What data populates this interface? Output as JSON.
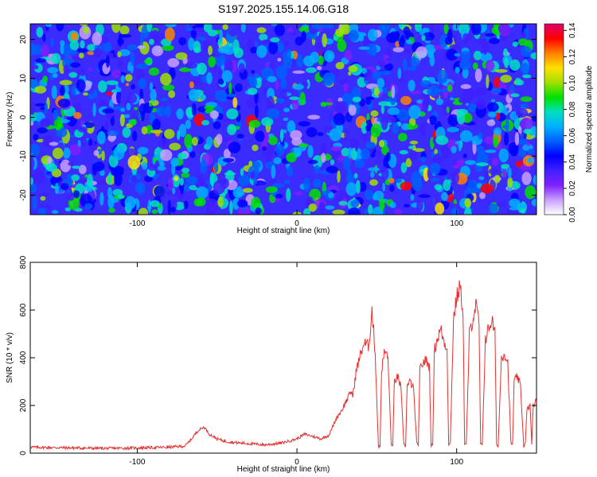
{
  "title": "S197.2025.155.14.06.G18",
  "colors": {
    "snr_line": "#e83030",
    "colormap": [
      "#ffffff",
      "#c8a0ff",
      "#8020ff",
      "#4020ff",
      "#0000ff",
      "#0060ff",
      "#00b0ff",
      "#00e0c0",
      "#00e000",
      "#a0e000",
      "#ffe000",
      "#ff8000",
      "#ff0000",
      "#e0006a"
    ]
  },
  "chart_data": [
    {
      "type": "heatmap",
      "xlabel": "Height of straight line (km)",
      "ylabel": "Frequency (Hz)",
      "xlim": [
        -167,
        150
      ],
      "ylim": [
        -25,
        24
      ],
      "x_ticks": [
        -100,
        0,
        100
      ],
      "y_ticks": [
        -20,
        -10,
        0,
        10,
        20
      ],
      "colorbar": {
        "label": "Normalized spectral amplitude",
        "range": [
          0,
          0.145
        ],
        "ticks": [
          "0.00",
          "0.02",
          "0.04",
          "0.06",
          "0.08",
          "0.10",
          "0.12",
          "0.14"
        ]
      }
    },
    {
      "type": "line",
      "xlabel": "Height of straight line (km)",
      "ylabel": "SNR (10 * v/v)",
      "xlim": [
        -167,
        150
      ],
      "ylim": [
        0,
        800
      ],
      "x_ticks": [
        -100,
        0,
        100
      ],
      "y_ticks": [
        0,
        200,
        400,
        600,
        800
      ],
      "series": [
        {
          "x": [
            -167,
            -140,
            -120,
            -100,
            -80,
            -70,
            -66,
            -62,
            -58,
            -55,
            -50,
            -45,
            -40,
            -30,
            -20,
            -10,
            0,
            5,
            10,
            15,
            20,
            25,
            28,
            31,
            34,
            35,
            37,
            40,
            42,
            45,
            47,
            49,
            51,
            52,
            53,
            55,
            57,
            59,
            60,
            61,
            63,
            65,
            67,
            68,
            69,
            71,
            73,
            75,
            76,
            77,
            79,
            81,
            83,
            84,
            85,
            86,
            88,
            90,
            92,
            94,
            95,
            96,
            98,
            100,
            102,
            104,
            105,
            106,
            108,
            110,
            112,
            114,
            115,
            116,
            118,
            120,
            122,
            124,
            125,
            126,
            128,
            130,
            132,
            134,
            135,
            136,
            138,
            140,
            142,
            143,
            144,
            146,
            147,
            148,
            150
          ],
          "y": [
            25,
            22,
            20,
            22,
            25,
            30,
            60,
            95,
            110,
            80,
            60,
            50,
            45,
            40,
            35,
            42,
            60,
            80,
            70,
            60,
            75,
            150,
            180,
            220,
            260,
            240,
            340,
            420,
            460,
            450,
            600,
            420,
            30,
            25,
            350,
            430,
            400,
            40,
            30,
            300,
            320,
            280,
            35,
            30,
            280,
            300,
            270,
            40,
            35,
            350,
            380,
            390,
            360,
            30,
            35,
            430,
            480,
            520,
            470,
            440,
            35,
            40,
            560,
            650,
            700,
            600,
            40,
            35,
            500,
            560,
            620,
            550,
            40,
            30,
            480,
            520,
            560,
            500,
            35,
            30,
            400,
            420,
            380,
            40,
            35,
            300,
            320,
            280,
            30,
            40,
            180,
            200,
            40,
            200,
            220
          ]
        }
      ]
    }
  ]
}
